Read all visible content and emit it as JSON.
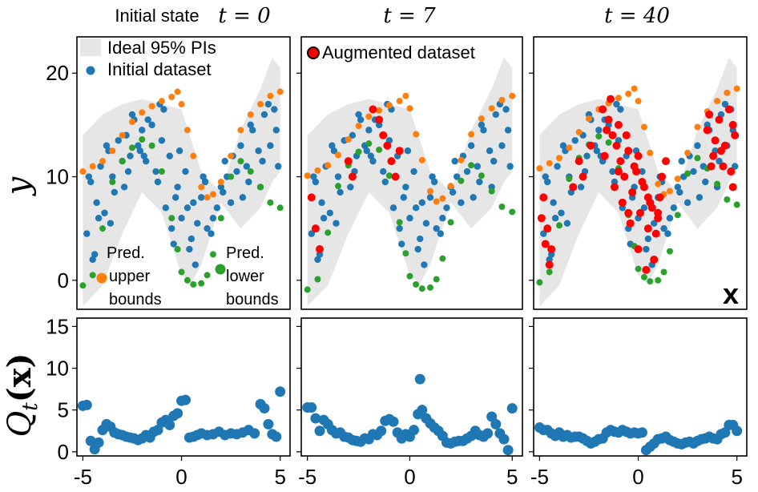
{
  "chart_data": {
    "type": "scatter",
    "columns": [
      {
        "title_prefix": "Initial state",
        "title_math": "t = 0",
        "t": 0
      },
      {
        "title_prefix": "",
        "title_math": "t = 7",
        "t": 7
      },
      {
        "title_prefix": "",
        "title_math": "t = 40",
        "t": 40
      }
    ],
    "top_ylabel": "y",
    "bottom_ylabel": "Q_t(x)",
    "bottom_ylabel_parts": {
      "q": "Q",
      "sub": "t",
      "arg": "(x)"
    },
    "xlabel": "x",
    "xlim": [
      -5.3,
      5.5
    ],
    "top_ylim": [
      -2.8,
      23.5
    ],
    "bottom_ylim": [
      -0.5,
      16
    ],
    "x_ticks": [
      -5,
      0,
      5
    ],
    "x_tick_labels": [
      "-5",
      "0",
      "5"
    ],
    "top_y_ticks": [
      0,
      10,
      20
    ],
    "top_y_tick_labels": [
      "0",
      "10",
      "20"
    ],
    "bottom_y_ticks": [
      0,
      5,
      10,
      15
    ],
    "bottom_y_tick_labels": [
      "0",
      "5",
      "10",
      "15"
    ],
    "legend_panel1": {
      "ideal_pi": "Ideal 95% PIs",
      "initial": "Initial dataset"
    },
    "legend_panel2": {
      "augmented": "Augmented dataset"
    },
    "annotations": {
      "upper": [
        "Pred.",
        "upper",
        "bounds"
      ],
      "lower": [
        "Pred.",
        "lower",
        "bounds"
      ]
    },
    "colors": {
      "band": "#e6e6e6",
      "initial": "#1f77b4",
      "upper": "#ff7f0e",
      "lower": "#2ca02c",
      "augmented": "#ff0000"
    },
    "ideal_pi_band": {
      "x": [
        -5,
        -4,
        -3,
        -2,
        -1,
        0,
        0.5,
        1,
        2,
        3,
        4,
        4.6,
        5
      ],
      "lower": [
        -2.5,
        -0.5,
        4.5,
        8.5,
        6.5,
        0.5,
        -0.3,
        1.5,
        7.5,
        5.0,
        7.0,
        9.5,
        10.5
      ],
      "upper": [
        14,
        16,
        17,
        17.5,
        17,
        16.5,
        13.5,
        10.5,
        8.5,
        14.5,
        18.5,
        21.5,
        20.5
      ]
    },
    "series": [
      {
        "name": "Initial dataset",
        "x": [
          -4.8,
          -4.6,
          -4.5,
          -4.3,
          -4.1,
          -3.9,
          -3.7,
          -3.5,
          -3.2,
          -3.0,
          -2.8,
          -2.6,
          -2.4,
          -2.2,
          -2.0,
          -1.8,
          -1.5,
          -1.3,
          -1.0,
          -0.8,
          -0.6,
          -0.4,
          -0.2,
          0.0,
          0.2,
          0.4,
          0.6,
          0.8,
          1.0,
          1.2,
          1.5,
          1.8,
          2.0,
          2.2,
          2.5,
          2.8,
          3.0,
          3.3,
          3.6,
          3.9,
          4.2,
          4.5,
          4.8,
          -4.7,
          -4.2,
          -3.8,
          -3.4,
          -2.9,
          -2.5,
          -2.1,
          -1.7,
          -1.2,
          -0.9,
          -0.5,
          -0.1,
          0.3,
          0.7,
          1.1,
          1.6,
          2.1,
          2.6,
          3.1,
          3.5,
          4.0,
          4.4,
          4.9,
          -4.4,
          -3.6,
          -2.7,
          -1.9,
          -1.1,
          -0.3,
          0.5,
          1.3,
          2.3,
          3.4,
          4.1,
          4.7
        ],
        "y": [
          4.5,
          9.5,
          2.0,
          7.5,
          11.0,
          6.5,
          12.5,
          10.0,
          13.5,
          11.5,
          14.0,
          12.0,
          15.5,
          13.0,
          14.5,
          11.5,
          15.0,
          10.5,
          13.5,
          7.0,
          12.0,
          3.5,
          9.0,
          6.0,
          10.5,
          3.0,
          7.5,
          5.5,
          8.0,
          9.5,
          4.5,
          7.0,
          9.0,
          11.5,
          7.5,
          10.5,
          13.0,
          11.0,
          14.5,
          12.5,
          16.0,
          13.0,
          14.5,
          10.0,
          6.0,
          13.0,
          8.5,
          9.0,
          16.0,
          12.5,
          15.5,
          9.5,
          16.5,
          5.0,
          12.5,
          7.0,
          1.5,
          10.0,
          6.0,
          8.5,
          12.0,
          8.0,
          15.0,
          9.0,
          17.0,
          11.0,
          2.5,
          5.5,
          10.5,
          12.0,
          17.0,
          8.0,
          4.0,
          5.0,
          10.0,
          9.5,
          11.5,
          16.5
        ]
      },
      {
        "name": "Pred. upper bounds",
        "x": [
          -5.0,
          -4.5,
          -4.0,
          -3.5,
          -3.0,
          -2.5,
          -2.0,
          -1.5,
          -1.0,
          -0.5,
          -0.2,
          0.0,
          0.3,
          0.6,
          1.0,
          1.3,
          1.6,
          2.0,
          2.5,
          3.0,
          3.5,
          4.0,
          4.5,
          5.0
        ],
        "y": [
          10.5,
          11.0,
          11.5,
          12.5,
          14.0,
          15.3,
          16.2,
          16.8,
          17.3,
          17.7,
          18.2,
          17.0,
          14.5,
          12.0,
          9.0,
          8.0,
          8.3,
          9.5,
          12.0,
          14.5,
          16.0,
          17.0,
          17.8,
          18.2
        ]
      },
      {
        "name": "Pred. lower bounds",
        "x": [
          -5.0,
          -4.5,
          -4.0,
          -3.5,
          -3.0,
          -2.5,
          -2.0,
          -1.5,
          -1.0,
          -0.5,
          -0.2,
          0.0,
          0.3,
          0.6,
          1.0,
          1.3,
          1.6,
          2.0,
          2.5,
          3.0,
          3.5,
          4.0,
          4.5,
          5.0
        ],
        "y": [
          -0.5,
          0.5,
          5.0,
          9.5,
          11.5,
          12.8,
          13.6,
          13.0,
          10.5,
          6.0,
          3.0,
          0.8,
          0.0,
          -0.4,
          -0.3,
          0.5,
          2.5,
          6.0,
          10.0,
          11.5,
          10.5,
          9.0,
          7.5,
          7.0
        ]
      },
      {
        "name": "Augmented dataset",
        "x": [
          -4.8,
          -4.6,
          -4.4,
          -3.0,
          -2.8,
          -1.8,
          -1.5,
          -1.3,
          -1.1,
          -0.9,
          -0.7,
          -0.5,
          -0.3,
          -0.1,
          0.1,
          0.3,
          0.5,
          0.7,
          0.9,
          1.1,
          1.4,
          3.5,
          3.8,
          4.1,
          4.4,
          4.7,
          4.9,
          -4.9,
          -4.5,
          -3.3,
          -2.4,
          -1.7,
          -1.4,
          -1.2,
          -1.0,
          -0.8,
          -0.6,
          -0.4,
          -0.2,
          0.0,
          0.2,
          0.4,
          0.6,
          0.8,
          1.0,
          1.2,
          3.6,
          3.9,
          4.3,
          4.6,
          4.8,
          -4.7,
          -1.6,
          -1.0,
          -0.5,
          0.0,
          0.5,
          1.0,
          3.7,
          4.2,
          4.8
        ],
        "y": [
          8.0,
          5.0,
          3.0,
          11.5,
          10.0,
          16.5,
          15.5,
          14.0,
          13.0,
          11.5,
          10.0,
          12.5,
          8.5,
          10.5,
          6.5,
          9.0,
          5.0,
          7.0,
          4.5,
          8.0,
          11.5,
          14.5,
          12.0,
          15.5,
          13.0,
          10.5,
          14.0,
          6.0,
          1.5,
          9.0,
          13.0,
          12.0,
          17.5,
          9.0,
          15.0,
          7.5,
          14.0,
          5.5,
          11.0,
          3.0,
          9.5,
          1.0,
          7.5,
          2.0,
          6.0,
          10.0,
          16.0,
          13.5,
          11.0,
          16.5,
          9.0,
          3.5,
          14.5,
          10.5,
          6.5,
          12.0,
          8.0,
          6.5,
          11.0,
          12.5,
          15.0
        ]
      }
    ],
    "panel_visibility": {
      "augmented_count_t7": 12
    },
    "q_series": [
      {
        "t": 0,
        "x": [
          -5.0,
          -4.8,
          -4.6,
          -4.4,
          -4.2,
          -4.0,
          -3.8,
          -3.6,
          -3.4,
          -3.2,
          -3.0,
          -2.8,
          -2.6,
          -2.4,
          -2.2,
          -2.0,
          -1.8,
          -1.6,
          -1.4,
          -1.2,
          -1.0,
          -0.8,
          -0.6,
          -0.4,
          -0.2,
          0.0,
          0.2,
          0.4,
          0.6,
          0.8,
          1.0,
          1.3,
          1.6,
          1.9,
          2.2,
          2.5,
          2.8,
          3.1,
          3.4,
          3.7,
          4.0,
          4.2,
          4.4,
          4.6,
          4.8,
          5.0
        ],
        "y": [
          5.5,
          5.6,
          1.3,
          0.3,
          1.1,
          2.6,
          3.3,
          3.0,
          2.3,
          2.1,
          2.0,
          1.8,
          1.7,
          1.6,
          1.4,
          1.6,
          2.0,
          1.7,
          2.4,
          2.6,
          3.5,
          3.8,
          3.2,
          4.3,
          4.6,
          6.1,
          6.2,
          1.7,
          1.8,
          2.0,
          2.2,
          2.0,
          2.1,
          2.4,
          2.0,
          2.2,
          2.1,
          2.3,
          2.6,
          2.2,
          5.7,
          5.2,
          3.3,
          2.1,
          1.8,
          7.2
        ]
      },
      {
        "t": 7,
        "x": [
          -5.0,
          -4.8,
          -4.6,
          -4.4,
          -4.2,
          -4.0,
          -3.8,
          -3.6,
          -3.4,
          -3.2,
          -3.0,
          -2.8,
          -2.6,
          -2.4,
          -2.2,
          -2.0,
          -1.8,
          -1.6,
          -1.4,
          -1.2,
          -1.0,
          -0.8,
          -0.6,
          -0.4,
          -0.2,
          0.0,
          0.2,
          0.4,
          0.5,
          0.6,
          0.8,
          1.0,
          1.2,
          1.4,
          1.6,
          1.8,
          2.0,
          2.2,
          2.4,
          2.6,
          2.8,
          3.0,
          3.2,
          3.4,
          3.6,
          3.8,
          4.0,
          4.2,
          4.4,
          4.6,
          4.8,
          5.0
        ],
        "y": [
          5.3,
          5.3,
          4.0,
          2.5,
          3.8,
          3.3,
          2.6,
          2.2,
          2.3,
          1.8,
          1.7,
          1.4,
          1.3,
          1.2,
          1.6,
          1.5,
          2.1,
          2.0,
          2.5,
          3.7,
          3.9,
          3.6,
          2.3,
          1.6,
          2.1,
          1.8,
          2.6,
          4.5,
          8.7,
          5.0,
          4.0,
          3.4,
          2.9,
          2.5,
          1.9,
          1.1,
          1.0,
          1.2,
          1.3,
          1.3,
          1.6,
          1.9,
          2.5,
          2.0,
          1.8,
          2.2,
          4.2,
          3.3,
          2.2,
          1.5,
          0.2,
          5.2
        ]
      },
      {
        "t": 40,
        "x": [
          -5.0,
          -4.8,
          -4.6,
          -4.4,
          -4.2,
          -4.0,
          -3.8,
          -3.6,
          -3.4,
          -3.2,
          -3.0,
          -2.8,
          -2.6,
          -2.4,
          -2.2,
          -2.0,
          -1.8,
          -1.6,
          -1.4,
          -1.2,
          -1.0,
          -0.8,
          -0.6,
          -0.4,
          -0.2,
          0.0,
          0.2,
          0.4,
          0.6,
          0.8,
          1.0,
          1.2,
          1.4,
          1.6,
          1.8,
          2.0,
          2.2,
          2.4,
          2.6,
          2.8,
          3.0,
          3.2,
          3.4,
          3.6,
          3.8,
          4.0,
          4.2,
          4.4,
          4.6,
          4.8,
          5.0
        ],
        "y": [
          2.9,
          2.6,
          2.6,
          2.2,
          1.9,
          2.3,
          1.8,
          2.0,
          1.7,
          1.8,
          1.8,
          1.6,
          1.3,
          1.0,
          1.2,
          1.5,
          1.6,
          2.3,
          2.6,
          2.4,
          2.3,
          2.6,
          2.4,
          2.2,
          2.3,
          2.2,
          2.3,
          0.2,
          0.6,
          1.0,
          1.5,
          1.6,
          1.8,
          1.4,
          1.2,
          1.0,
          0.9,
          1.1,
          1.2,
          1.0,
          1.3,
          1.5,
          1.6,
          1.8,
          1.6,
          1.5,
          2.1,
          2.3,
          3.2,
          3.2,
          2.5
        ]
      }
    ]
  }
}
